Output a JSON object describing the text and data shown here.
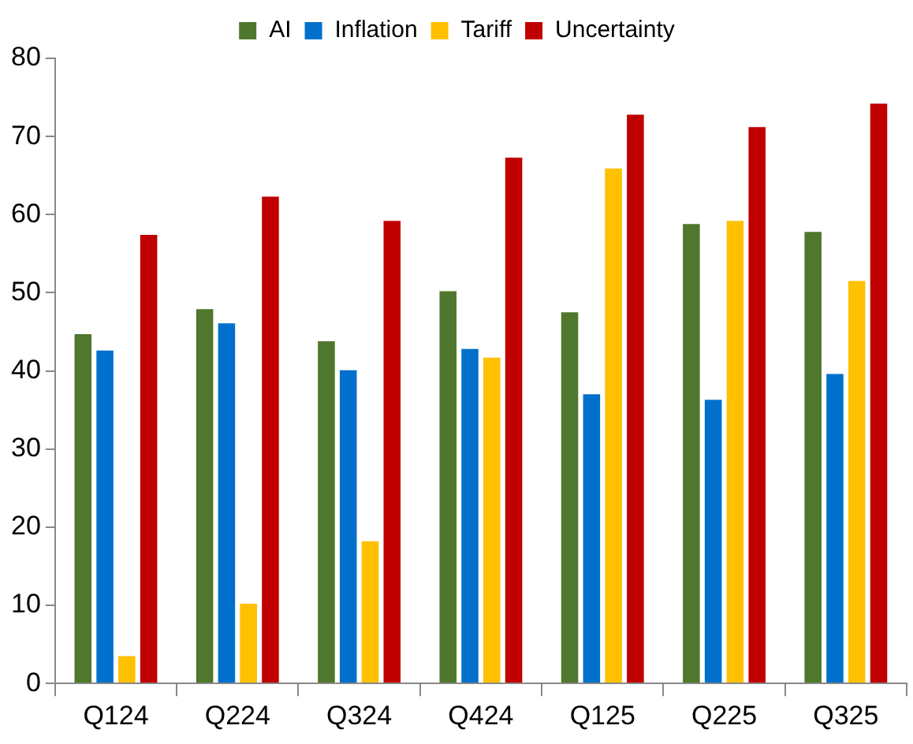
{
  "chart_data": {
    "type": "bar",
    "categories": [
      "Q124",
      "Q224",
      "Q324",
      "Q424",
      "Q125",
      "Q225",
      "Q325"
    ],
    "series": [
      {
        "name": "AI",
        "color": "#4f772d",
        "values": [
          44.9,
          48.1,
          44.0,
          50.4,
          47.7,
          59.0,
          58.0
        ]
      },
      {
        "name": "Inflation",
        "color": "#0070cc",
        "values": [
          42.8,
          46.3,
          40.3,
          43.0,
          37.2,
          36.5,
          39.8
        ]
      },
      {
        "name": "Tariff",
        "color": "#ffc000",
        "values": [
          3.7,
          10.4,
          18.4,
          41.9,
          66.1,
          59.4,
          51.7
        ]
      },
      {
        "name": "Uncertainty",
        "color": "#c00000",
        "values": [
          57.6,
          62.5,
          59.4,
          67.5,
          73.0,
          71.4,
          74.4
        ]
      }
    ],
    "ylim": [
      0,
      80
    ],
    "yticks": [
      0,
      10,
      20,
      30,
      40,
      50,
      60,
      70,
      80
    ],
    "grid": false,
    "legend": "top"
  }
}
